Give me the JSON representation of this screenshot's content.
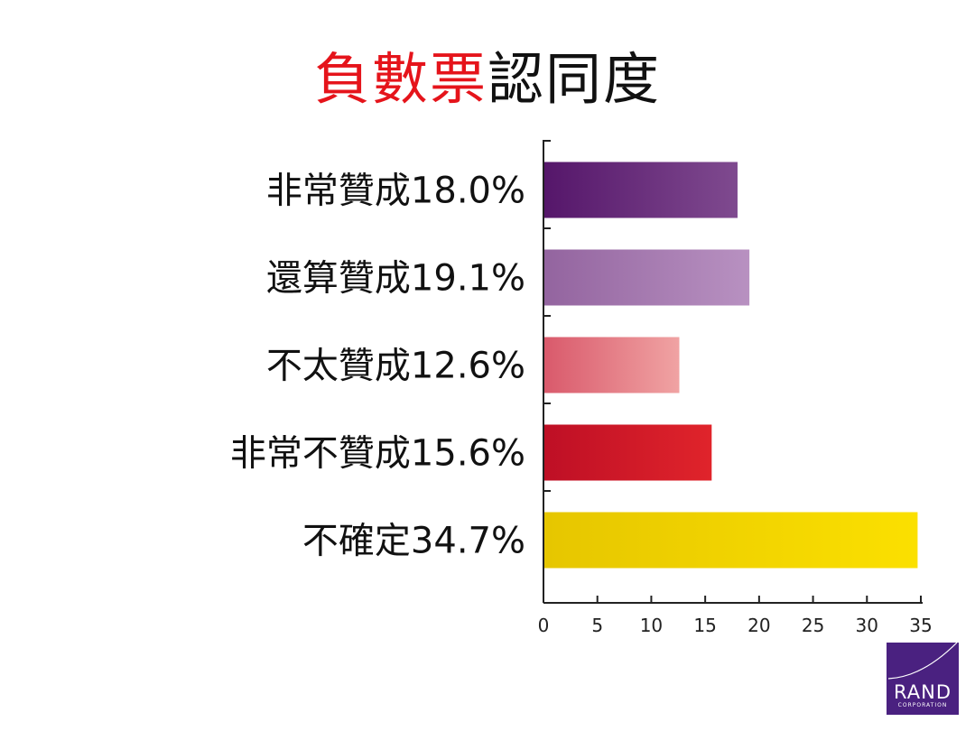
{
  "title": {
    "part1": "負數票",
    "part2": "認同度",
    "part1_color": "#e5141b",
    "part2_color": "#111111"
  },
  "chart_data": {
    "type": "bar",
    "orientation": "horizontal",
    "categories": [
      "非常贊成18.0%",
      "還算贊成19.1%",
      "不太贊成12.6%",
      "非常不贊成15.6%",
      "不確定34.7%"
    ],
    "values": [
      18.0,
      19.1,
      12.6,
      15.6,
      34.7
    ],
    "xlim": [
      0,
      35
    ],
    "xticks": [
      0,
      5,
      10,
      15,
      20,
      25,
      30,
      35
    ],
    "grid": false,
    "bar_colors": [
      [
        "#55166a",
        "#7f4a8f"
      ],
      [
        "#93649f",
        "#b891c1"
      ],
      [
        "#d9596b",
        "#f0a3a3"
      ],
      [
        "#be0f25",
        "#e0242b"
      ],
      [
        "#e6c600",
        "#fbe000"
      ]
    ]
  },
  "logo": {
    "main": "RAND",
    "sub": "CORPORATION",
    "color": "#4a2180"
  }
}
